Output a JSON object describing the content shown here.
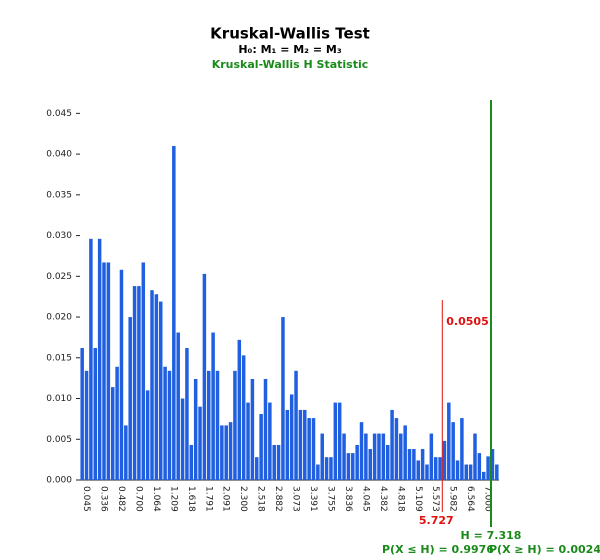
{
  "chart_data": {
    "type": "bar",
    "title": "Kruskal-Wallis Test",
    "subtitle": "H₀: M₁ = M₂ = M₃",
    "statistic_label": "Kruskal-Wallis H Statistic",
    "color": "#1f5fe0",
    "categories": [
      null,
      "0.045",
      null,
      null,
      null,
      "0.336",
      null,
      null,
      null,
      "0.482",
      null,
      null,
      null,
      "0.700",
      null,
      null,
      null,
      "1.064",
      null,
      null,
      null,
      "1.209",
      null,
      null,
      null,
      "1.618",
      null,
      null,
      null,
      "1.791",
      null,
      null,
      null,
      "2.091",
      null,
      null,
      null,
      "2.300",
      null,
      null,
      null,
      "2.518",
      null,
      null,
      null,
      "2.882",
      null,
      null,
      null,
      "3.073",
      null,
      null,
      null,
      "3.391",
      null,
      null,
      null,
      "3.755",
      null,
      null,
      null,
      "3.836",
      null,
      null,
      null,
      "4.045",
      null,
      null,
      null,
      "4.382",
      null,
      null,
      null,
      "4.818",
      null,
      null,
      null,
      "5.109",
      null,
      null,
      null,
      "5.573",
      null,
      null,
      null,
      "5.982",
      null,
      null,
      null,
      "6.564",
      null,
      null,
      null,
      "7.000",
      null,
      null
    ],
    "values": [
      0.0162,
      0.0134,
      0.0296,
      0.0162,
      0.0296,
      0.0267,
      0.0267,
      0.0114,
      0.0139,
      0.0258,
      0.0067,
      0.02,
      0.0238,
      0.0238,
      0.0267,
      0.011,
      0.0233,
      0.0228,
      0.0219,
      0.0139,
      0.0134,
      0.041,
      0.0181,
      0.01,
      0.0162,
      0.0043,
      0.0124,
      0.009,
      0.0253,
      0.0134,
      0.0181,
      0.0134,
      0.0067,
      0.0067,
      0.0071,
      0.0134,
      0.0172,
      0.0153,
      0.0095,
      0.0124,
      0.0028,
      0.0081,
      0.0124,
      0.0095,
      0.0043,
      0.0043,
      0.02,
      0.0086,
      0.0105,
      0.0134,
      0.0086,
      0.0086,
      0.0076,
      0.0076,
      0.0019,
      0.0057,
      0.0028,
      0.0028,
      0.0095,
      0.0095,
      0.0057,
      0.0033,
      0.0033,
      0.0043,
      0.0071,
      0.0057,
      0.0038,
      0.0057,
      0.0057,
      0.0057,
      0.0043,
      0.0086,
      0.0076,
      0.0057,
      0.0067,
      0.0038,
      0.0038,
      0.0024,
      0.0038,
      0.0019,
      0.0057,
      0.0028,
      0.0028,
      0.0048,
      0.0095,
      0.0071,
      0.0024,
      0.0076,
      0.0019,
      0.0019,
      0.0057,
      0.0033,
      0.001,
      0.0029,
      0.0038,
      0.0019
    ],
    "ylim": [
      0,
      0.0475
    ],
    "yticks": [
      {
        "value": 0,
        "label": "0.000"
      },
      {
        "value": 0.005,
        "label": "0.005"
      },
      {
        "value": 0.01,
        "label": "0.010"
      },
      {
        "value": 0.015,
        "label": "0.015"
      },
      {
        "value": 0.02,
        "label": "0.020"
      },
      {
        "value": 0.025,
        "label": "0.025"
      },
      {
        "value": 0.03,
        "label": "0.030"
      },
      {
        "value": 0.035,
        "label": "0.035"
      },
      {
        "value": 0.04,
        "label": "0.040"
      },
      {
        "value": 0.045,
        "label": "0.045"
      }
    ],
    "critical": {
      "value": 5.727,
      "label": "5.727",
      "area": 0.0505,
      "color": "#e01010"
    },
    "h_statistic": {
      "value": 7.318,
      "label": "H = 7.318",
      "color": "#1a8a1a"
    },
    "p_left_label": "P(X ≤ H) = 0.9976",
    "p_right_label": "P(X ≥ H) = 0.0024"
  }
}
